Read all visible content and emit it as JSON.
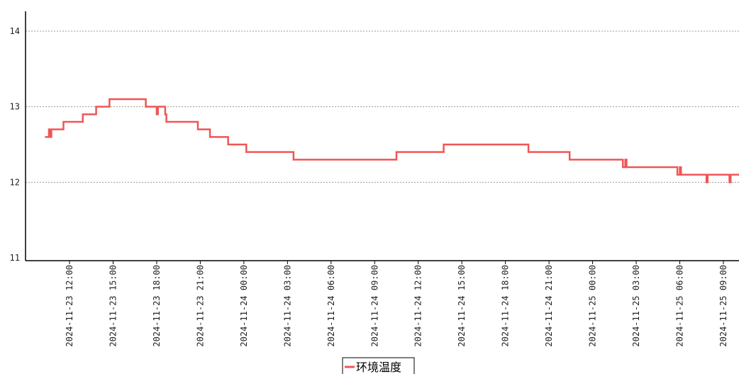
{
  "chart_data": {
    "type": "line",
    "title": "",
    "xlabel": "",
    "ylabel": "",
    "ylim": [
      11,
      14
    ],
    "xlim": [
      "2024-11-23 09:40",
      "2024-11-25 10:40"
    ],
    "y_ticks": [
      "11",
      "12",
      "13",
      "14"
    ],
    "y_tick_values": [
      11,
      12,
      13,
      14
    ],
    "x_ticks": [
      "2024-11-23 12:00",
      "2024-11-23 15:00",
      "2024-11-23 18:00",
      "2024-11-23 21:00",
      "2024-11-24 00:00",
      "2024-11-24 03:00",
      "2024-11-24 06:00",
      "2024-11-24 09:00",
      "2024-11-24 12:00",
      "2024-11-24 15:00",
      "2024-11-24 18:00",
      "2024-11-24 21:00",
      "2024-11-25 00:00",
      "2024-11-25 03:00",
      "2024-11-25 06:00",
      "2024-11-25 09:00"
    ],
    "grid": "horizontal dotted",
    "legend_position": "bottom-center",
    "line_style": "step",
    "series": [
      {
        "name": "环境温度",
        "color": "#f05555",
        "x": [
          "2024-11-23 10:20",
          "2024-11-23 10:35",
          "2024-11-23 10:40",
          "2024-11-23 10:45",
          "2024-11-23 11:35",
          "2024-11-23 12:55",
          "2024-11-23 13:50",
          "2024-11-23 14:45",
          "2024-11-23 17:15",
          "2024-11-23 18:00",
          "2024-11-23 18:05",
          "2024-11-23 18:15",
          "2024-11-23 18:35",
          "2024-11-23 18:40",
          "2024-11-23 19:45",
          "2024-11-23 19:50",
          "2024-11-23 20:50",
          "2024-11-23 21:40",
          "2024-11-23 22:55",
          "2024-11-24 00:10",
          "2024-11-24 00:15",
          "2024-11-24 03:25",
          "2024-11-24 03:30",
          "2024-11-24 10:25",
          "2024-11-24 10:30",
          "2024-11-24 13:45",
          "2024-11-24 19:35",
          "2024-11-24 22:25",
          "2024-11-25 02:05",
          "2024-11-25 02:15",
          "2024-11-25 02:20",
          "2024-11-25 05:50",
          "2024-11-25 06:00",
          "2024-11-25 06:05",
          "2024-11-25 07:50",
          "2024-11-25 07:55",
          "2024-11-25 09:25",
          "2024-11-25 09:30",
          "2024-11-25 10:10"
        ],
        "values": [
          12.6,
          12.7,
          12.6,
          12.7,
          12.8,
          12.9,
          13.0,
          13.1,
          13.0,
          12.9,
          13.0,
          13.0,
          12.9,
          12.8,
          12.8,
          12.8,
          12.7,
          12.6,
          12.5,
          12.4,
          12.4,
          12.3,
          12.3,
          12.3,
          12.4,
          12.5,
          12.4,
          12.3,
          12.2,
          12.3,
          12.2,
          12.1,
          12.2,
          12.1,
          12.0,
          12.1,
          12.0,
          12.1,
          12.1
        ]
      }
    ]
  }
}
